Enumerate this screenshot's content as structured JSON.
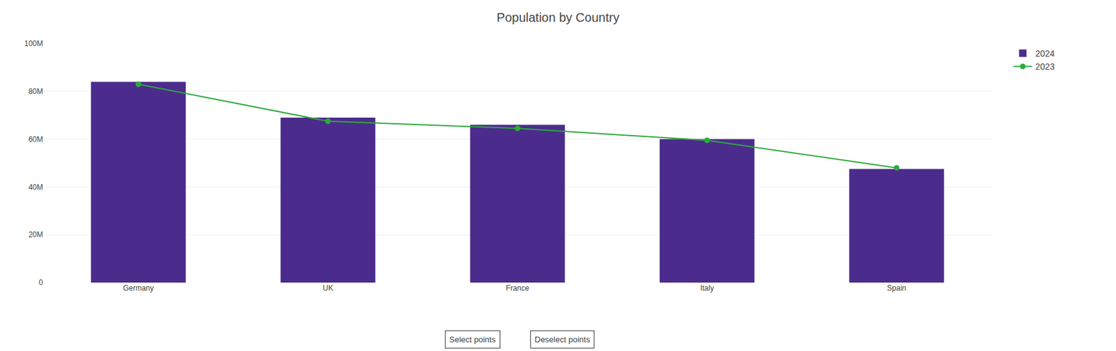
{
  "chart_data": {
    "type": "bar",
    "title": "Population by Country",
    "categories": [
      "Germany",
      "UK",
      "France",
      "Italy",
      "Spain"
    ],
    "series": [
      {
        "name": "2024",
        "type": "bar",
        "color": "#4B2C8C",
        "values": [
          84000000,
          69000000,
          66000000,
          60000000,
          47500000
        ]
      },
      {
        "name": "2023",
        "type": "line",
        "color": "#2EAA3C",
        "marker": "circle",
        "values": [
          83000000,
          67500000,
          64500000,
          59500000,
          48000000
        ]
      }
    ],
    "ylim": [
      0,
      100000000
    ],
    "yticks": [
      0,
      {
        "value": 20000000,
        "label": "20M"
      },
      {
        "value": 40000000,
        "label": "40M"
      },
      {
        "value": 60000000,
        "label": "60M"
      },
      {
        "value": 80000000,
        "label": "80M"
      },
      {
        "value": 100000000,
        "label": "100M"
      }
    ],
    "grid": true,
    "legend": "upper right",
    "annotations": [
      "Select points",
      "Deselect points"
    ]
  }
}
